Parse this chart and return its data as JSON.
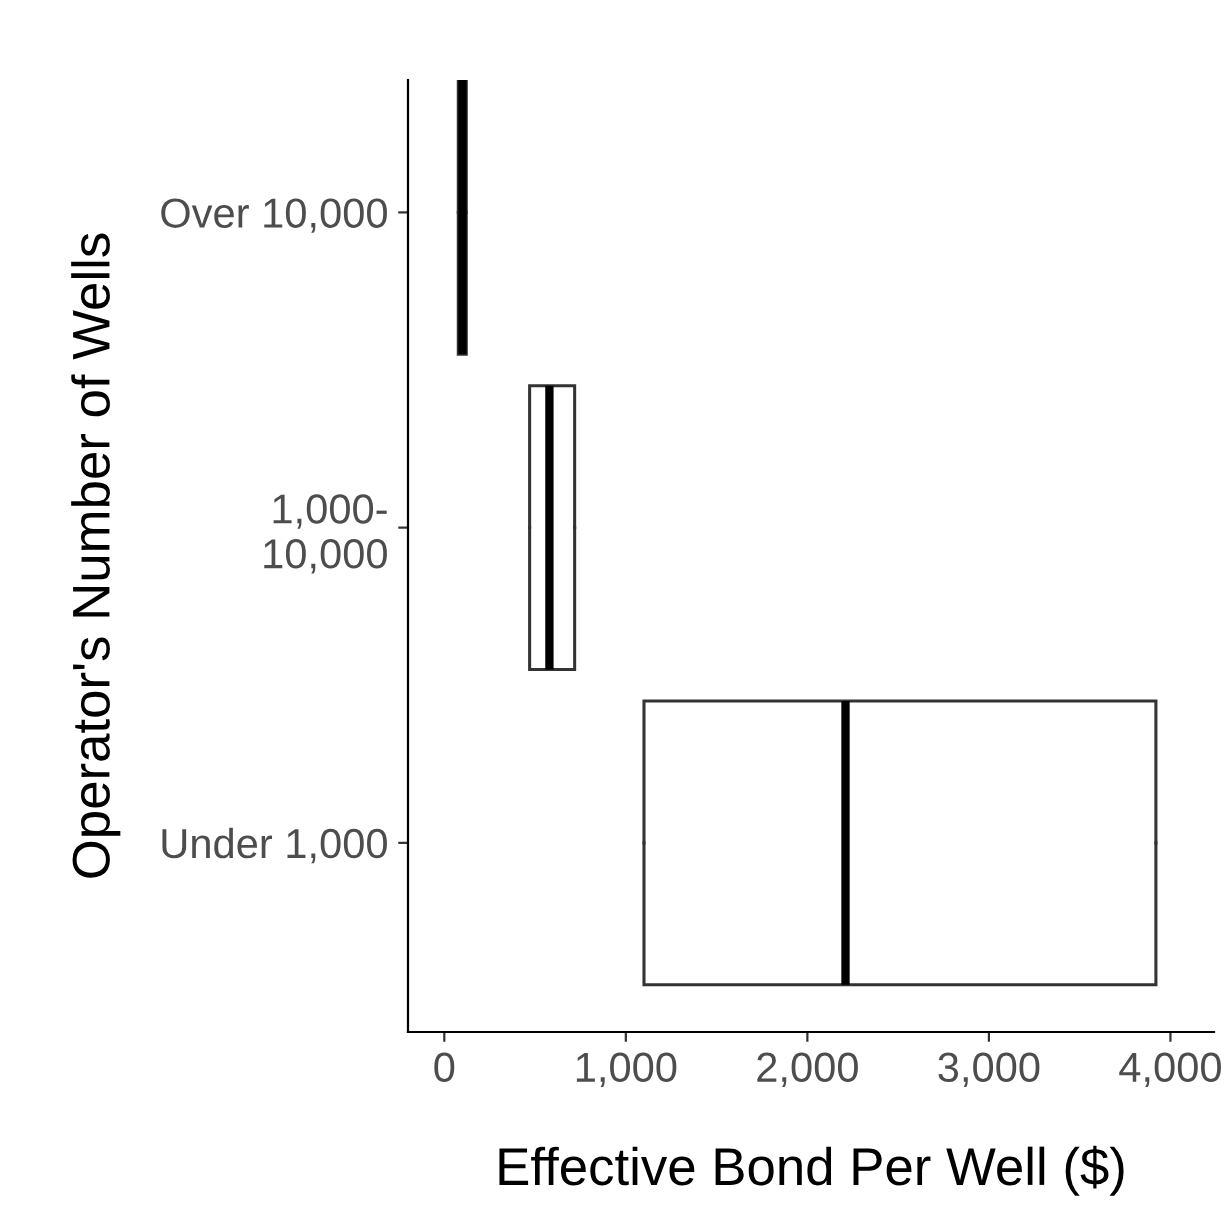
{
  "chart_data": {
    "type": "box",
    "orientation": "horizontal",
    "xlabel": "Effective Bond Per Well ($)",
    "ylabel": "Operator's Number of Wells",
    "categories": [
      "Over 10,000",
      "1,000-\n10,000",
      "Under 1,000"
    ],
    "boxes": [
      {
        "low": 77,
        "q1": 77,
        "median": 100,
        "q3": 121,
        "high": 121
      },
      {
        "low": 470,
        "q1": 470,
        "median": 579,
        "q3": 718,
        "high": 718
      },
      {
        "low": 1100,
        "q1": 1100,
        "median": 2210,
        "q3": 3920,
        "high": 3920
      }
    ],
    "xlim": [
      -200,
      4240
    ],
    "xticks": [
      {
        "value": 0,
        "label": "0"
      },
      {
        "value": 1000,
        "label": "1,000"
      },
      {
        "value": 2000,
        "label": "2,000"
      },
      {
        "value": 3000,
        "label": "3,000"
      },
      {
        "value": 4000,
        "label": "4,000"
      }
    ],
    "grid": false
  }
}
